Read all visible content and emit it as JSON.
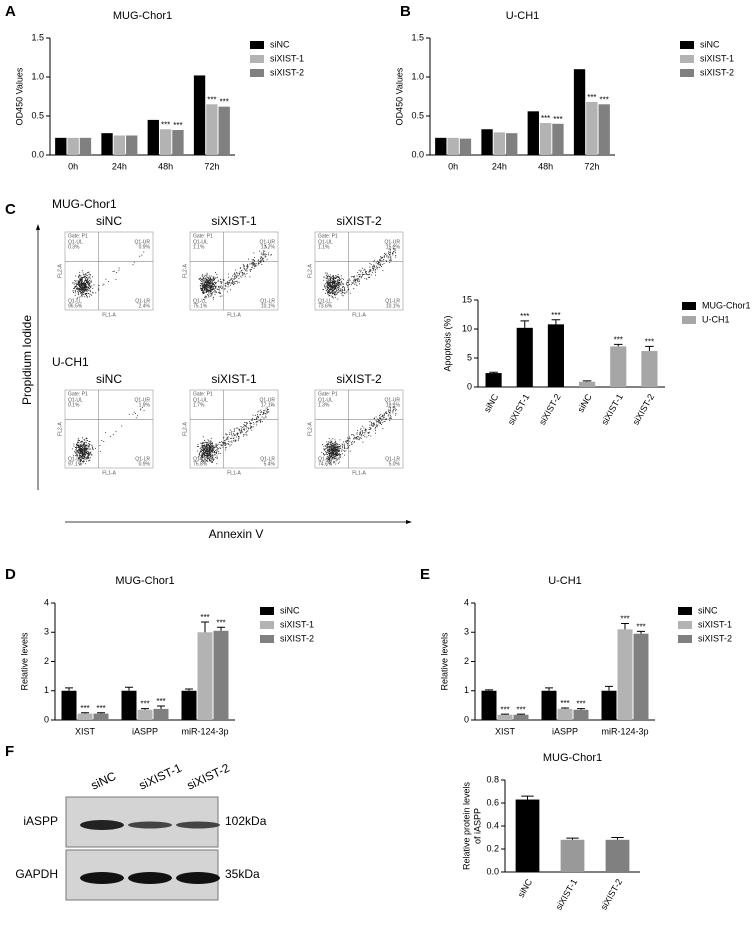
{
  "panel_labels": [
    "A",
    "B",
    "C",
    "D",
    "E",
    "F"
  ],
  "chart_data": [
    {
      "type": "bar",
      "title": "MUG-Chor1",
      "y_label": "OD450 Values",
      "categories": [
        "0h",
        "24h",
        "48h",
        "72h"
      ],
      "series": [
        {
          "name": "siNC",
          "color": "#000000",
          "values": [
            0.22,
            0.28,
            0.45,
            1.02
          ]
        },
        {
          "name": "siXIST-1",
          "color": "#b3b3b3",
          "values": [
            0.22,
            0.25,
            0.33,
            0.65
          ],
          "significance": [
            null,
            null,
            "***",
            "***"
          ]
        },
        {
          "name": "siXIST-2",
          "color": "#808080",
          "values": [
            0.22,
            0.25,
            0.32,
            0.62
          ],
          "significance": [
            null,
            null,
            "***",
            "***"
          ]
        }
      ],
      "ylim": [
        0,
        1.5
      ],
      "yticks": [
        {
          "value": 0,
          "label": "0.0"
        },
        0.5,
        {
          "value": 1,
          "label": "1.0"
        },
        1.5
      ],
      "legend": "right"
    },
    {
      "type": "bar",
      "title": "U-CH1",
      "y_label": "OD450 Values",
      "categories": [
        "0h",
        "24h",
        "48h",
        "72h"
      ],
      "series": [
        {
          "name": "siNC",
          "color": "#000000",
          "values": [
            0.22,
            0.33,
            0.56,
            1.1
          ]
        },
        {
          "name": "siXIST-1",
          "color": "#b3b3b3",
          "values": [
            0.22,
            0.29,
            0.41,
            0.68
          ],
          "significance": [
            null,
            null,
            "***",
            "***"
          ]
        },
        {
          "name": "siXIST-2",
          "color": "#808080",
          "values": [
            0.21,
            0.28,
            0.4,
            0.65
          ],
          "significance": [
            null,
            null,
            "***",
            "***"
          ]
        }
      ],
      "ylim": [
        0,
        1.5
      ],
      "yticks": [
        {
          "value": 0,
          "label": "0.0"
        },
        0.5,
        {
          "value": 1,
          "label": "1.0"
        },
        1.5
      ],
      "legend": "right"
    },
    {
      "type": "bar",
      "y_label": "Apoptosis (%)",
      "categories": [
        "siNC",
        "siXIST-1",
        "siXIST-2",
        "siNC",
        "siXIST-1",
        "siXIST-2"
      ],
      "series": [
        {
          "name": "MUG-Chor1",
          "color": "#000000",
          "values": [
            2.4,
            10.2,
            10.8,
            null,
            null,
            null
          ],
          "errors": [
            0.15,
            1.2,
            0.8,
            null,
            null,
            null
          ],
          "significance": [
            null,
            "***",
            "***",
            null,
            null,
            null
          ]
        },
        {
          "name": "U-CH1",
          "color": "#a6a6a6",
          "values": [
            null,
            null,
            null,
            0.9,
            7.0,
            6.2
          ],
          "errors": [
            null,
            null,
            null,
            0.15,
            0.35,
            0.8
          ],
          "significance": [
            null,
            null,
            null,
            null,
            "***",
            "***"
          ]
        }
      ],
      "ylim": [
        0,
        15
      ],
      "yticks": [
        0,
        5,
        10,
        15
      ],
      "legend": "right",
      "rotate_x_labels": true
    },
    {
      "type": "bar",
      "title": "MUG-Chor1",
      "y_label": "Relative levels",
      "categories": [
        "XIST",
        "iASPP",
        "miR-124-3p"
      ],
      "series": [
        {
          "name": "siNC",
          "color": "#000000",
          "values": [
            1.0,
            1.0,
            1.0
          ],
          "errors": [
            0.1,
            0.12,
            0.06
          ]
        },
        {
          "name": "siXIST-1",
          "color": "#b3b3b3",
          "values": [
            0.22,
            0.35,
            3.0
          ],
          "errors": [
            0.03,
            0.04,
            0.35
          ],
          "significance": [
            "***",
            "***",
            "***"
          ]
        },
        {
          "name": "siXIST-2",
          "color": "#808080",
          "values": [
            0.22,
            0.38,
            3.05
          ],
          "errors": [
            0.03,
            0.1,
            0.12
          ],
          "significance": [
            "***",
            "***",
            "***"
          ]
        }
      ],
      "ylim": [
        0,
        4
      ],
      "yticks": [
        0,
        1,
        2,
        3,
        4
      ],
      "legend": "right"
    },
    {
      "type": "bar",
      "title": "U-CH1",
      "y_label": "Relative levels",
      "categories": [
        "XIST",
        "iASPP",
        "miR-124-3p"
      ],
      "series": [
        {
          "name": "siNC",
          "color": "#000000",
          "values": [
            1.0,
            1.0,
            1.0
          ],
          "errors": [
            0.03,
            0.1,
            0.15
          ]
        },
        {
          "name": "siXIST-1",
          "color": "#b3b3b3",
          "values": [
            0.18,
            0.38,
            3.1
          ],
          "errors": [
            0.02,
            0.03,
            0.2
          ],
          "significance": [
            "***",
            "***",
            "***"
          ]
        },
        {
          "name": "siXIST-2",
          "color": "#808080",
          "values": [
            0.18,
            0.35,
            2.95
          ],
          "errors": [
            0.02,
            0.04,
            0.08
          ],
          "significance": [
            "***",
            "***",
            "***"
          ]
        }
      ],
      "ylim": [
        0,
        4
      ],
      "yticks": [
        0,
        1,
        2,
        3,
        4
      ],
      "legend": "right"
    },
    {
      "type": "bar",
      "title": "MUG-Chor1",
      "y_label": [
        "Relative protein levels",
        "of iASPP"
      ],
      "categories": [
        "siNC",
        "siXIST-1",
        "siXIST-2"
      ],
      "values": [
        0.63,
        0.28,
        0.28
      ],
      "errors": [
        0.03,
        0.015,
        0.02
      ],
      "colors": [
        "#000000",
        "#999999",
        "#808080"
      ],
      "ylim": [
        0,
        0.8
      ],
      "yticks": [
        {
          "value": 0,
          "label": "0.0"
        },
        0.2,
        0.4,
        0.6,
        0.8
      ],
      "rotate_x_labels": true
    }
  ],
  "flow_cytometry": {
    "y_label": "Propidium Iodide",
    "x_label": "Annexin V",
    "gate": "Gate: P1",
    "x_axis": "FL1-A",
    "y_axis": "FL2-A",
    "quadrant_names": {
      "ul": "Q1-UL",
      "ur": "Q1-UR",
      "ll": "Q1-LL",
      "lr": "Q1-LR"
    },
    "rows": [
      {
        "cell_line": "MUG-Chor1",
        "panels": [
          {
            "title": "siNC",
            "quadrants": {
              "ul": "0.3%",
              "ur": "0.9%",
              "ll": "96.5%",
              "lr": "2.4%"
            }
          },
          {
            "title": "siXIST-1",
            "quadrants": {
              "ul": "1.1%",
              "ur": "13.7%",
              "ll": "75.1%",
              "lr": "10.1%"
            }
          },
          {
            "title": "siXIST-2",
            "quadrants": {
              "ul": "1.1%",
              "ur": "15.2%",
              "ll": "73.6%",
              "lr": "10.1%"
            }
          }
        ]
      },
      {
        "cell_line": "U-CH1",
        "panels": [
          {
            "title": "siNC",
            "quadrants": {
              "ul": "0.1%",
              "ur": "1.9%",
              "ll": "97.1%",
              "lr": "0.9%"
            }
          },
          {
            "title": "siXIST-1",
            "quadrants": {
              "ul": "1.7%",
              "ur": "17.1%",
              "ll": "75.8%",
              "lr": "5.4%"
            }
          },
          {
            "title": "siXIST-2",
            "quadrants": {
              "ul": "1.3%",
              "ur": "19.1%",
              "ll": "74.6%",
              "lr": "5.0%"
            }
          }
        ]
      }
    ]
  },
  "western_blot": {
    "lanes": [
      "siNC",
      "siXIST-1",
      "siXIST-2"
    ],
    "rows": [
      {
        "protein": "iASPP",
        "size": "102kDa"
      },
      {
        "protein": "GAPDH",
        "size": "35kDa"
      }
    ]
  }
}
